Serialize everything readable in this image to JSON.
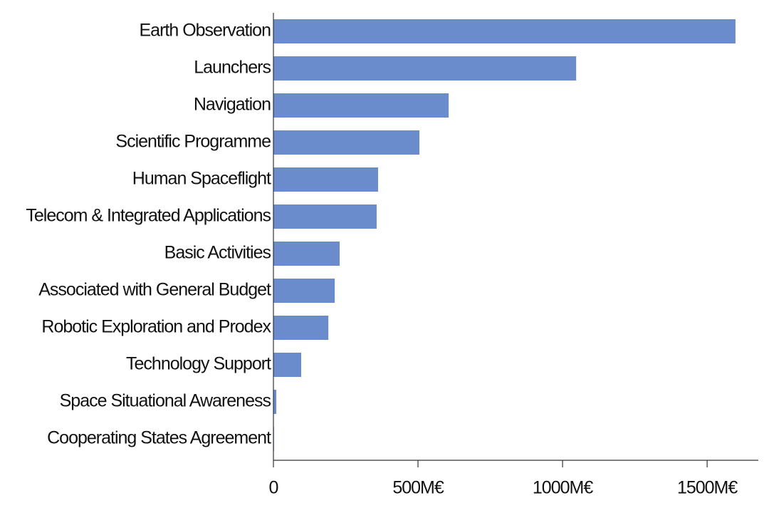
{
  "chart_data": {
    "type": "bar",
    "orientation": "horizontal",
    "categories": [
      "Earth Observation",
      "Launchers",
      "Navigation",
      "Scientific Programme",
      "Human Spaceflight",
      "Telecom & Integrated Applications",
      "Basic Activities",
      "Associated with General Budget",
      "Robotic Exploration and Prodex",
      "Technology Support",
      "Space Situational Awareness",
      "Cooperating States Agreement"
    ],
    "values": [
      1598,
      1047,
      606,
      505,
      362,
      357,
      229,
      212,
      190,
      96,
      10,
      2
    ],
    "color": "#6a8ccc",
    "xlim": [
      0,
      1677
    ],
    "xticks": [
      0,
      {
        "value": 500,
        "label": "500M€"
      },
      {
        "value": 1000,
        "label": "1000M€"
      },
      {
        "value": 1500,
        "label": "1500M€"
      }
    ],
    "grid": false
  }
}
